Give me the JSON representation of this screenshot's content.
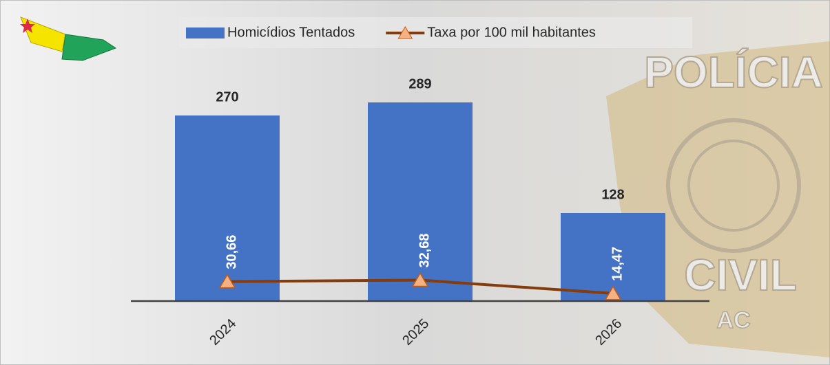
{
  "chart_data": {
    "type": "bar_line",
    "categories": [
      "2024",
      "2025",
      "2026"
    ],
    "series": [
      {
        "name": "Homicídios Tentados",
        "type": "bar",
        "color": "#4472c4",
        "values": [
          270,
          289,
          128
        ]
      },
      {
        "name": "Taxa por 100 mil habitantes",
        "type": "line",
        "axis": "y2",
        "color": "#843c0c",
        "marker_color": "#f4b183",
        "values": [
          30.66,
          32.68,
          14.47
        ],
        "value_labels": [
          "30,66",
          "32,68",
          "14,47"
        ]
      }
    ],
    "ylim": [
      0,
      400
    ],
    "y2lim": [
      4,
      380
    ],
    "legend": "top"
  },
  "badge": {
    "top": "POLÍCIA",
    "bottom": "CIVIL",
    "state": "AC"
  }
}
